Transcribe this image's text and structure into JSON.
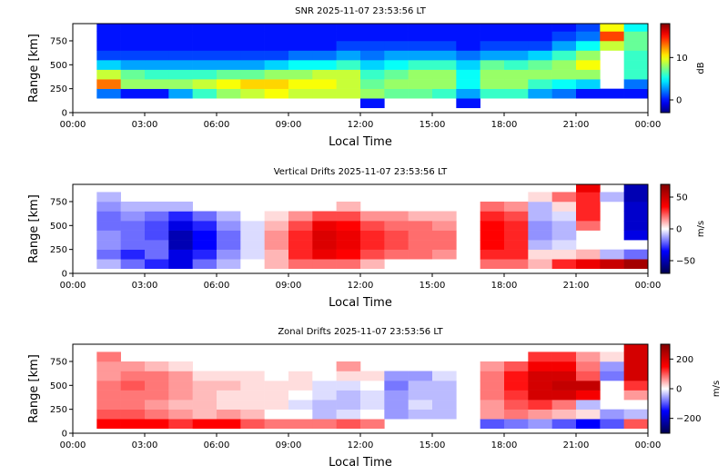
{
  "chart_data": [
    {
      "type": "heatmap",
      "title": "SNR 2025-11-07 23:53:56 LT",
      "xlabel": "Local Time",
      "ylabel": "Range [km]",
      "xlim": [
        0,
        24
      ],
      "ylim": [
        0,
        930
      ],
      "xticks": [
        0,
        3,
        6,
        9,
        12,
        15,
        18,
        21,
        24
      ],
      "xtick_labels": [
        "00:00",
        "03:00",
        "06:00",
        "09:00",
        "12:00",
        "15:00",
        "18:00",
        "21:00",
        "00:00"
      ],
      "yticks": [
        0,
        250,
        500,
        750
      ],
      "ytick_labels": [
        "0",
        "250",
        "500",
        "750"
      ],
      "colormap": "jet",
      "clim": [
        -3,
        18
      ],
      "colorbar_label": "dB",
      "colorbar_ticks": [
        0,
        10
      ],
      "colorbar_tick_labels": [
        "0",
        "10"
      ],
      "time_centers_h": [
        0.5,
        1.5,
        2.5,
        3.5,
        4.5,
        5.5,
        6.5,
        7.5,
        8.5,
        9.5,
        10.5,
        11.5,
        12.5,
        13.5,
        14.5,
        15.5,
        16.5,
        17.5,
        18.5,
        19.5,
        20.5,
        21.5,
        22.5,
        23.5
      ],
      "range_centers_km": [
        100,
        200,
        300,
        400,
        500,
        600,
        700,
        800,
        900
      ],
      "z": [
        [
          null,
          null,
          null,
          null,
          null,
          null,
          null,
          null,
          null
        ],
        [
          null,
          2,
          13,
          9,
          4,
          1,
          0,
          0,
          0
        ],
        [
          null,
          0,
          8,
          7,
          3,
          1,
          0,
          0,
          0
        ],
        [
          null,
          0,
          8,
          6,
          3,
          1,
          0,
          0,
          0
        ],
        [
          null,
          3,
          8,
          6,
          3,
          1,
          0,
          0,
          0
        ],
        [
          null,
          6,
          9,
          6,
          3,
          1,
          0,
          0,
          0
        ],
        [
          null,
          8,
          10,
          7,
          3,
          1,
          0,
          0,
          0
        ],
        [
          null,
          9,
          11,
          7,
          3,
          1,
          0,
          0,
          0
        ],
        [
          null,
          10,
          11,
          8,
          4,
          1,
          0,
          0,
          0
        ],
        [
          null,
          9,
          10,
          8,
          5,
          2,
          0,
          0,
          0
        ],
        [
          null,
          9,
          10,
          9,
          5,
          2,
          0,
          0,
          0
        ],
        [
          null,
          9,
          9,
          9,
          6,
          3,
          1,
          0,
          0
        ],
        [
          0,
          8,
          7,
          6,
          4,
          2,
          1,
          0,
          0
        ],
        [
          null,
          7,
          8,
          7,
          5,
          3,
          1,
          0,
          0
        ],
        [
          null,
          7,
          8,
          8,
          6,
          3,
          1,
          0,
          0
        ],
        [
          null,
          6,
          8,
          8,
          6,
          3,
          1,
          0,
          0
        ],
        [
          0,
          3,
          5,
          5,
          4,
          2,
          0,
          0,
          0
        ],
        [
          null,
          6,
          8,
          8,
          7,
          3,
          1,
          0,
          0
        ],
        [
          null,
          6,
          8,
          8,
          6,
          3,
          1,
          0,
          0
        ],
        [
          null,
          3,
          6,
          8,
          7,
          4,
          1,
          0,
          0
        ],
        [
          null,
          2,
          5,
          8,
          8,
          6,
          3,
          1,
          0
        ],
        [
          null,
          0,
          4,
          8,
          10,
          8,
          5,
          2,
          1
        ],
        [
          null,
          0,
          null,
          null,
          null,
          null,
          9,
          14,
          10
        ],
        [
          null,
          0,
          2,
          6,
          6,
          6,
          7,
          7,
          5
        ]
      ]
    },
    {
      "type": "heatmap",
      "title": "Vertical Drifts 2025-11-07 23:53:56 LT",
      "xlabel": "Local Time",
      "ylabel": "Range [km]",
      "xlim": [
        0,
        24
      ],
      "ylim": [
        0,
        930
      ],
      "xticks": [
        0,
        3,
        6,
        9,
        12,
        15,
        18,
        21,
        24
      ],
      "xtick_labels": [
        "00:00",
        "03:00",
        "06:00",
        "09:00",
        "12:00",
        "15:00",
        "18:00",
        "21:00",
        "00:00"
      ],
      "yticks": [
        0,
        250,
        500,
        750
      ],
      "ytick_labels": [
        "0",
        "250",
        "500",
        "750"
      ],
      "colormap": "seismic",
      "clim": [
        -70,
        70
      ],
      "colorbar_label": "m/s",
      "colorbar_ticks": [
        -50,
        0,
        50
      ],
      "colorbar_tick_labels": [
        "−50",
        "0",
        "50"
      ],
      "time_centers_h": [
        0.5,
        1.5,
        2.5,
        3.5,
        4.5,
        5.5,
        6.5,
        7.5,
        8.5,
        9.5,
        10.5,
        11.5,
        12.5,
        13.5,
        14.5,
        15.5,
        16.5,
        17.5,
        18.5,
        19.5,
        20.5,
        21.5,
        22.5,
        23.5
      ],
      "range_centers_km": [
        100,
        200,
        300,
        400,
        500,
        600,
        700,
        800,
        900
      ],
      "z": [
        [
          null,
          null,
          null,
          null,
          null,
          null,
          null,
          null,
          null
        ],
        [
          -10,
          -20,
          -15,
          -15,
          -20,
          -20,
          -15,
          -10,
          null
        ],
        [
          -20,
          -30,
          -20,
          -20,
          -20,
          -15,
          -10,
          null,
          null
        ],
        [
          -30,
          -20,
          -20,
          -25,
          -25,
          -20,
          -10,
          null,
          null
        ],
        [
          -40,
          -40,
          -50,
          -50,
          -40,
          -30,
          -10,
          null,
          null
        ],
        [
          -20,
          -30,
          -35,
          -35,
          -30,
          -20,
          null,
          null,
          null
        ],
        [
          -10,
          -15,
          -20,
          -20,
          -15,
          -10,
          null,
          null,
          null
        ],
        [
          0,
          -5,
          -5,
          -5,
          -5,
          0,
          null,
          null,
          null
        ],
        [
          10,
          10,
          15,
          15,
          10,
          5,
          null,
          null,
          null
        ],
        [
          20,
          30,
          30,
          30,
          25,
          15,
          null,
          null,
          null
        ],
        [
          20,
          40,
          45,
          45,
          40,
          25,
          null,
          null,
          null
        ],
        [
          20,
          35,
          40,
          40,
          35,
          25,
          10,
          null,
          null
        ],
        [
          10,
          25,
          30,
          30,
          25,
          15,
          null,
          null,
          null
        ],
        [
          null,
          20,
          25,
          25,
          20,
          15,
          null,
          null,
          null
        ],
        [
          null,
          20,
          20,
          20,
          20,
          10,
          null,
          null,
          null
        ],
        [
          null,
          15,
          20,
          20,
          15,
          10,
          null,
          null,
          null
        ],
        [
          null,
          null,
          null,
          null,
          null,
          null,
          null,
          null,
          null
        ],
        [
          20,
          30,
          35,
          35,
          35,
          30,
          20,
          null,
          null
        ],
        [
          20,
          30,
          30,
          30,
          30,
          25,
          15,
          null,
          null
        ],
        [
          10,
          5,
          -10,
          -15,
          -15,
          -10,
          -10,
          5,
          null
        ],
        [
          30,
          5,
          -5,
          -10,
          -10,
          -5,
          5,
          20,
          null
        ],
        [
          40,
          10,
          null,
          null,
          20,
          30,
          30,
          30,
          40
        ],
        [
          50,
          -10,
          null,
          null,
          null,
          null,
          null,
          -10,
          null
        ],
        [
          60,
          -20,
          null,
          -40,
          -45,
          -45,
          -45,
          -50,
          -50
        ]
      ]
    },
    {
      "type": "heatmap",
      "title": "Zonal Drifts 2025-11-07 23:53:56 LT",
      "xlabel": "Local Time",
      "ylabel": "Range [km]",
      "xlim": [
        0,
        24
      ],
      "ylim": [
        0,
        930
      ],
      "xticks": [
        0,
        3,
        6,
        9,
        12,
        15,
        18,
        21,
        24
      ],
      "xtick_labels": [
        "00:00",
        "03:00",
        "06:00",
        "09:00",
        "12:00",
        "15:00",
        "18:00",
        "21:00",
        "00:00"
      ],
      "yticks": [
        0,
        250,
        500,
        750
      ],
      "ytick_labels": [
        "0",
        "250",
        "500",
        "750"
      ],
      "colormap": "seismic",
      "clim": [
        -300,
        300
      ],
      "colorbar_label": "m/s",
      "colorbar_ticks": [
        -200,
        0,
        200
      ],
      "colorbar_tick_labels": [
        "−200",
        "0",
        "200"
      ],
      "time_centers_h": [
        0.5,
        1.5,
        2.5,
        3.5,
        4.5,
        5.5,
        6.5,
        7.5,
        8.5,
        9.5,
        10.5,
        11.5,
        12.5,
        13.5,
        14.5,
        15.5,
        16.5,
        17.5,
        18.5,
        19.5,
        20.5,
        21.5,
        22.5,
        23.5
      ],
      "range_centers_km": [
        100,
        200,
        300,
        400,
        500,
        600,
        700,
        800,
        900
      ],
      "z": [
        [
          null,
          null,
          null,
          null,
          null,
          null,
          null,
          null,
          null
        ],
        [
          150,
          100,
          80,
          80,
          80,
          60,
          60,
          80,
          null
        ],
        [
          150,
          100,
          80,
          80,
          100,
          80,
          60,
          null,
          null
        ],
        [
          150,
          80,
          60,
          80,
          80,
          80,
          40,
          null,
          null
        ],
        [
          120,
          60,
          40,
          60,
          60,
          60,
          20,
          null,
          null
        ],
        [
          150,
          40,
          40,
          40,
          40,
          20,
          null,
          null,
          null
        ],
        [
          150,
          60,
          20,
          20,
          40,
          20,
          null,
          null,
          null
        ],
        [
          100,
          40,
          20,
          20,
          20,
          20,
          null,
          null,
          null
        ],
        [
          80,
          0,
          20,
          20,
          20,
          0,
          null,
          null,
          null
        ],
        [
          80,
          0,
          -20,
          0,
          20,
          20,
          0,
          null,
          null
        ],
        [
          80,
          -40,
          -40,
          -20,
          -20,
          0,
          null,
          null,
          null
        ],
        [
          100,
          -20,
          -40,
          -40,
          -20,
          20,
          60,
          null,
          null
        ],
        [
          80,
          0,
          -20,
          -20,
          0,
          20,
          null,
          null,
          null
        ],
        [
          null,
          -60,
          -60,
          -60,
          -80,
          -60,
          null,
          null,
          null
        ],
        [
          null,
          -40,
          -20,
          -40,
          -40,
          -60,
          null,
          null,
          null
        ],
        [
          null,
          -40,
          -40,
          -40,
          -40,
          -20,
          null,
          null,
          null
        ],
        [
          null,
          null,
          null,
          null,
          null,
          null,
          null,
          null,
          null
        ],
        [
          -100,
          60,
          60,
          80,
          80,
          80,
          60,
          null,
          null
        ],
        [
          -80,
          80,
          100,
          120,
          140,
          140,
          100,
          null,
          null
        ],
        [
          -60,
          60,
          120,
          200,
          200,
          200,
          160,
          120,
          null
        ],
        [
          -100,
          40,
          80,
          200,
          220,
          200,
          160,
          120,
          null
        ],
        [
          -150,
          20,
          -40,
          160,
          220,
          100,
          80,
          60,
          null
        ],
        [
          -100,
          -60,
          null,
          null,
          null,
          -80,
          -60,
          20,
          null
        ],
        [
          100,
          -40,
          null,
          60,
          120,
          200,
          200,
          200,
          200
        ]
      ]
    }
  ]
}
